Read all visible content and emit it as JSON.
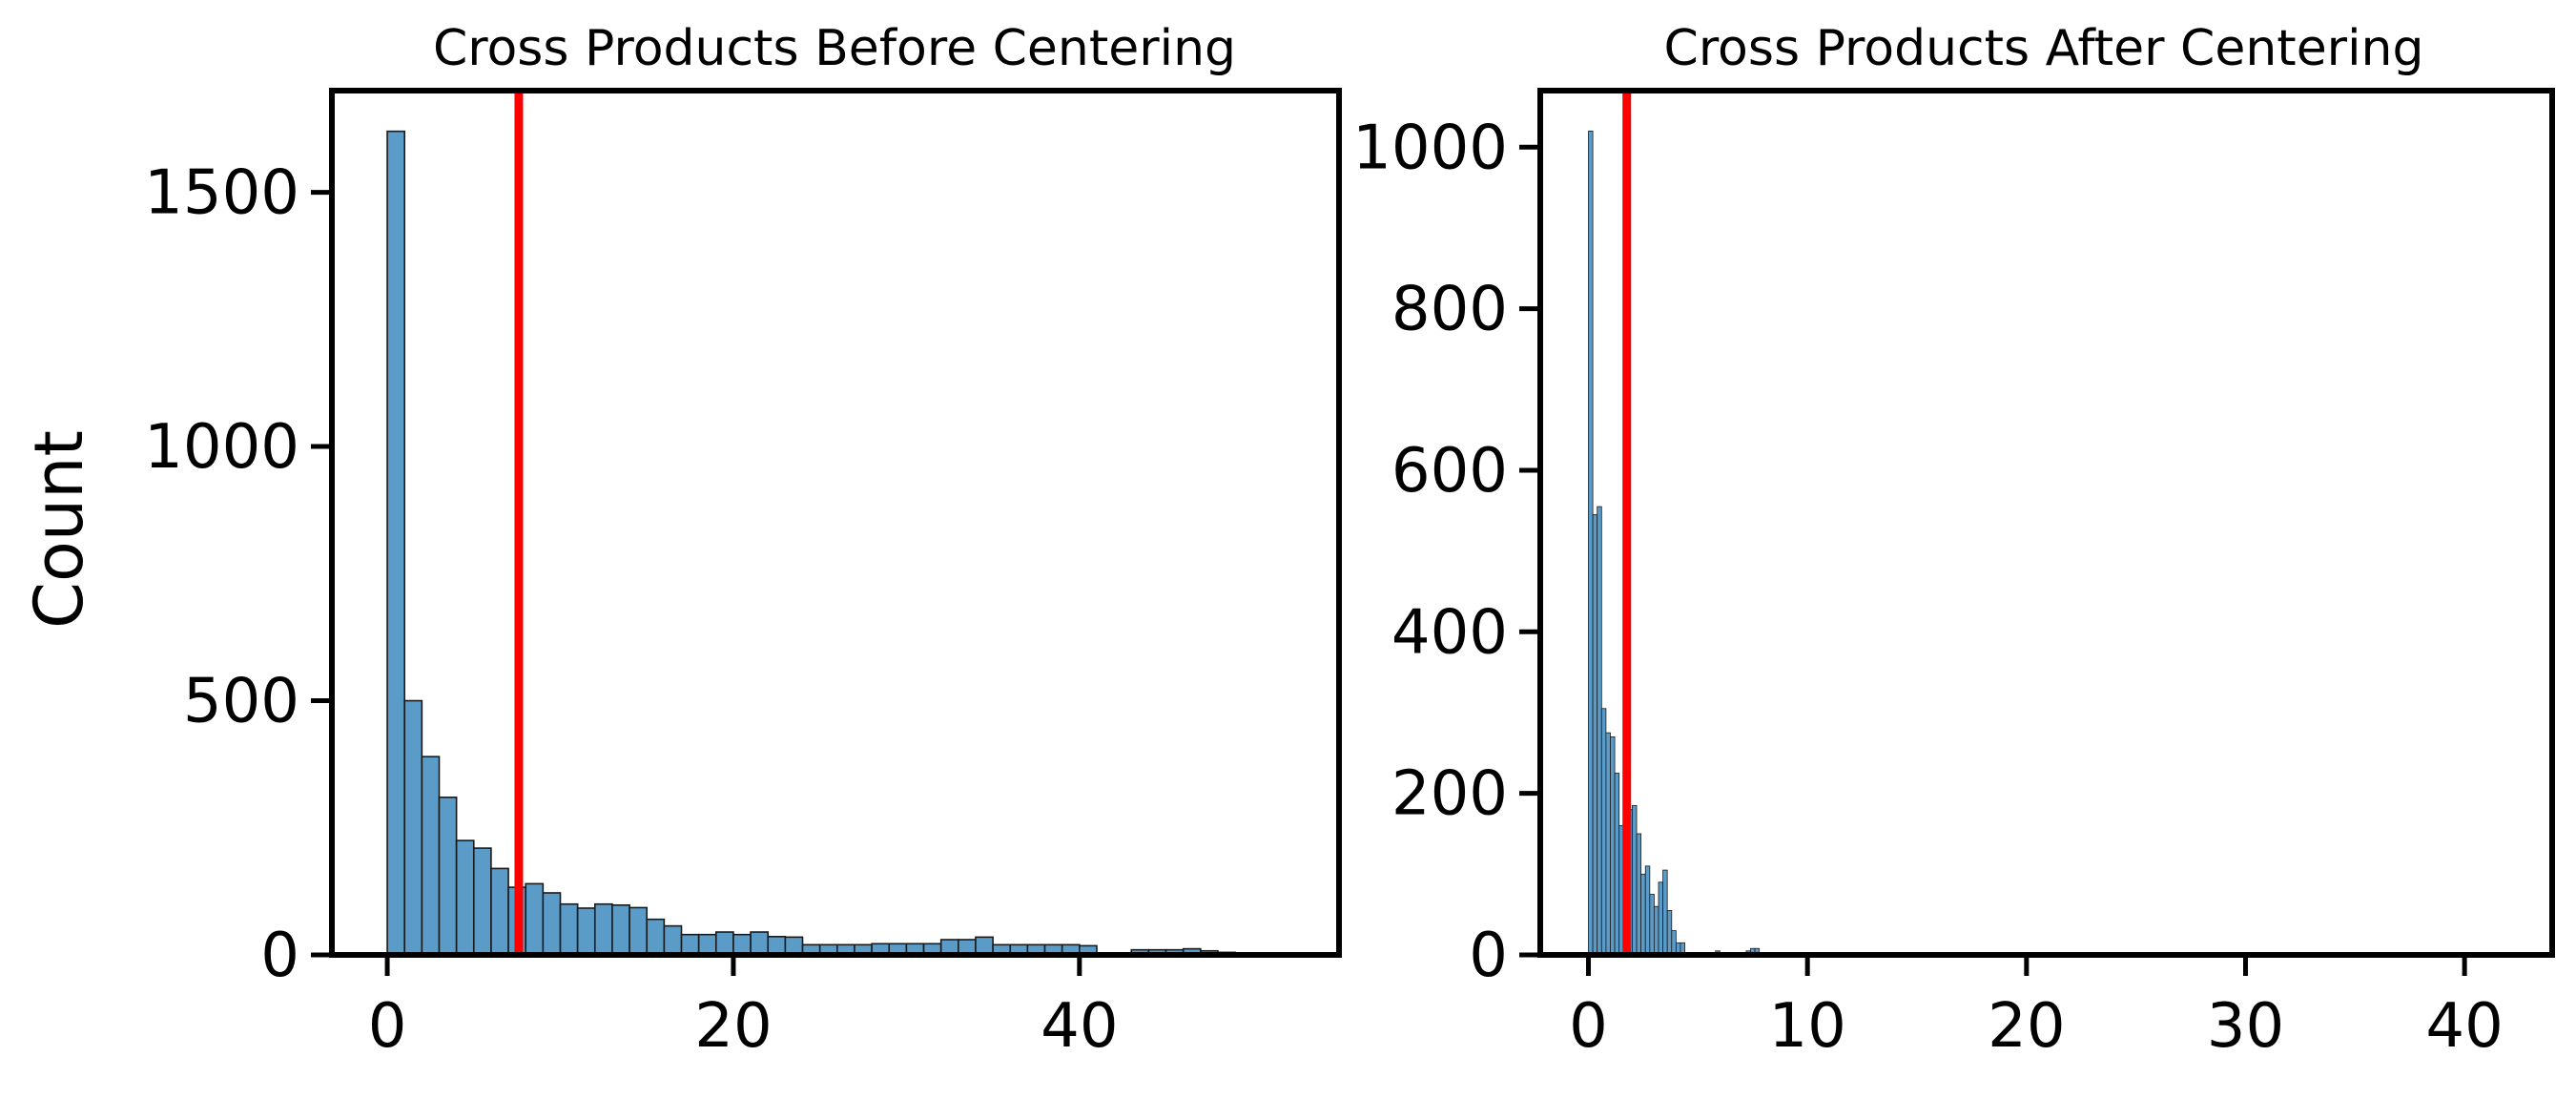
{
  "colors": {
    "bar_fill": "#5a9bc8",
    "bar_edge": "#1a1a1a",
    "mean_line": "#ff0000",
    "axis": "#000000",
    "background": "#ffffff"
  },
  "chart_data": [
    {
      "type": "bar",
      "subtype": "histogram",
      "title": "Cross Products Before Centering",
      "xlabel": "",
      "ylabel": "Count",
      "xlim": [
        -3.2,
        55
      ],
      "ylim": [
        0,
        1700
      ],
      "xticks": [
        0,
        20,
        40
      ],
      "xtick_labels": [
        "0",
        "20",
        "40"
      ],
      "yticks": [
        0,
        500,
        1000,
        1500
      ],
      "ytick_labels": [
        "0",
        "500",
        "1000",
        "1500"
      ],
      "bin_start": 0,
      "bin_width": 1.0,
      "values": [
        1620,
        500,
        390,
        310,
        225,
        210,
        170,
        133,
        140,
        122,
        100,
        92,
        100,
        98,
        93,
        70,
        57,
        40,
        40,
        45,
        40,
        45,
        36,
        35,
        20,
        20,
        20,
        20,
        22,
        22,
        22,
        22,
        30,
        30,
        35,
        20,
        20,
        20,
        20,
        20,
        18,
        0,
        3,
        10,
        10,
        10,
        12,
        8,
        5,
        0
      ],
      "reference_line_x": 7.6,
      "grid": false
    },
    {
      "type": "bar",
      "subtype": "histogram",
      "title": "Cross Products After Centering",
      "xlabel": "",
      "ylabel": "",
      "xlim": [
        -2.2,
        44
      ],
      "ylim": [
        0,
        1070
      ],
      "xticks": [
        0,
        10,
        20,
        30,
        40
      ],
      "xtick_labels": [
        "0",
        "10",
        "20",
        "30",
        "40"
      ],
      "yticks": [
        0,
        200,
        400,
        600,
        800,
        1000
      ],
      "ytick_labels": [
        "0",
        "200",
        "400",
        "600",
        "800",
        "1000"
      ],
      "bin_start": 0,
      "bin_width": 0.2,
      "values": [
        1020,
        545,
        555,
        305,
        275,
        270,
        225,
        160,
        175,
        180,
        185,
        150,
        100,
        110,
        75,
        60,
        90,
        105,
        55,
        30,
        15,
        15,
        0,
        0,
        0,
        2,
        0,
        3,
        0,
        5,
        3,
        2,
        0,
        0,
        0,
        0,
        5,
        8,
        8
      ],
      "reference_line_x": 1.75,
      "grid": false
    }
  ]
}
